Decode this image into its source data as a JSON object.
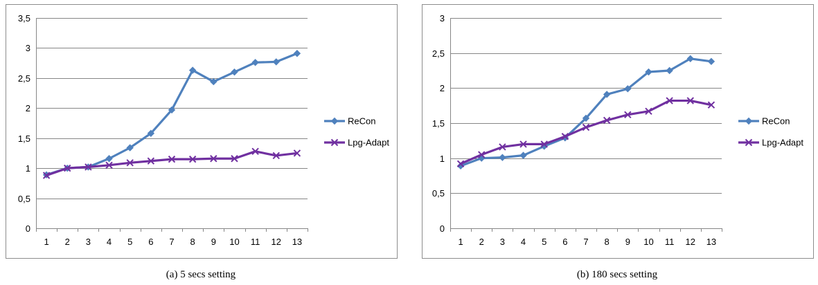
{
  "chart_data": [
    {
      "type": "line",
      "caption": "(a)  5 secs setting",
      "categories": [
        "1",
        "2",
        "3",
        "4",
        "5",
        "6",
        "7",
        "8",
        "9",
        "10",
        "11",
        "12",
        "13"
      ],
      "ylim": [
        0,
        3.5
      ],
      "yticks": [
        "0",
        "0,5",
        "1",
        "1,5",
        "2",
        "2,5",
        "3",
        "3,5"
      ],
      "ytick_values": [
        0,
        0.5,
        1,
        1.5,
        2,
        2.5,
        3,
        3.5
      ],
      "grid": true,
      "legend": "right",
      "series": [
        {
          "name": "ReCon",
          "color": "#4f81bd",
          "marker": "diamond",
          "values": [
            0.89,
            1.0,
            1.02,
            1.16,
            1.34,
            1.58,
            1.97,
            2.63,
            2.44,
            2.6,
            2.76,
            2.77,
            2.91
          ]
        },
        {
          "name": "Lpg-Adapt",
          "color": "#7030a0",
          "marker": "x",
          "values": [
            0.88,
            1.0,
            1.02,
            1.05,
            1.09,
            1.12,
            1.15,
            1.15,
            1.16,
            1.16,
            1.28,
            1.21,
            1.25
          ]
        }
      ]
    },
    {
      "type": "line",
      "caption": "(b)  180 secs setting",
      "categories": [
        "1",
        "2",
        "3",
        "4",
        "5",
        "6",
        "7",
        "8",
        "9",
        "10",
        "11",
        "12",
        "13"
      ],
      "ylim": [
        0,
        3
      ],
      "yticks": [
        "0",
        "0,5",
        "1",
        "1,5",
        "2",
        "2,5",
        "3"
      ],
      "ytick_values": [
        0,
        0.5,
        1,
        1.5,
        2,
        2.5,
        3
      ],
      "grid": true,
      "legend": "right",
      "series": [
        {
          "name": "ReCon",
          "color": "#4f81bd",
          "marker": "diamond",
          "values": [
            0.89,
            1.0,
            1.01,
            1.04,
            1.17,
            1.29,
            1.57,
            1.91,
            1.99,
            2.23,
            2.25,
            2.42,
            2.38
          ]
        },
        {
          "name": "Lpg-Adapt",
          "color": "#7030a0",
          "marker": "x",
          "values": [
            0.92,
            1.05,
            1.16,
            1.2,
            1.2,
            1.31,
            1.44,
            1.54,
            1.62,
            1.67,
            1.82,
            1.82,
            1.76
          ]
        }
      ]
    }
  ]
}
